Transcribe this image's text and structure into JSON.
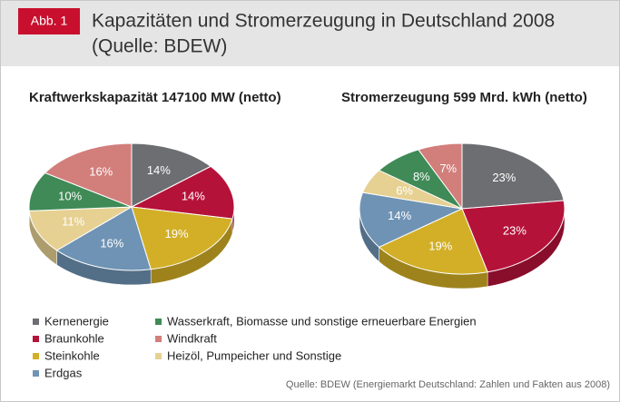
{
  "header": {
    "badge": "Abb. 1",
    "title_lines": [
      "Kapazitäten und Stromerzeugung in Deutschland 2008",
      "(Quelle: BDEW)"
    ]
  },
  "legend": [
    {
      "name": "Kernenergie",
      "color": "#6d6e71"
    },
    {
      "name": "Braunkohle",
      "color": "#b5123a"
    },
    {
      "name": "Steinkohle",
      "color": "#d2af27"
    },
    {
      "name": "Erdgas",
      "color": "#6f93b4"
    },
    {
      "name": "Heizöl, Pumpeicher und Sonstige",
      "color": "#e6d193"
    },
    {
      "name": "Wasserkraft, Biomasse und sonstige erneuerbare Energien",
      "color": "#3f8a56"
    },
    {
      "name": "Windkraft",
      "color": "#d27e7b"
    }
  ],
  "chart_data": [
    {
      "type": "pie",
      "title": "Kraftwerkskapazität 147100 MW (netto)",
      "values": [
        14,
        14,
        19,
        16,
        11,
        10,
        16
      ],
      "value_labels": [
        "14%",
        "14%",
        "19%",
        "16%",
        "11%",
        "10%",
        "16%"
      ]
    },
    {
      "type": "pie",
      "title": "Stromerzeugung 599 Mrd. kWh (netto)",
      "values": [
        23,
        23,
        19,
        14,
        6,
        8,
        7
      ],
      "value_labels": [
        "23%",
        "23%",
        "19%",
        "14%",
        "6%",
        "8%",
        "7%"
      ]
    }
  ],
  "source": "Quelle: BDEW   (Energiemarkt Deutschland: Zahlen und Fakten aus 2008)"
}
